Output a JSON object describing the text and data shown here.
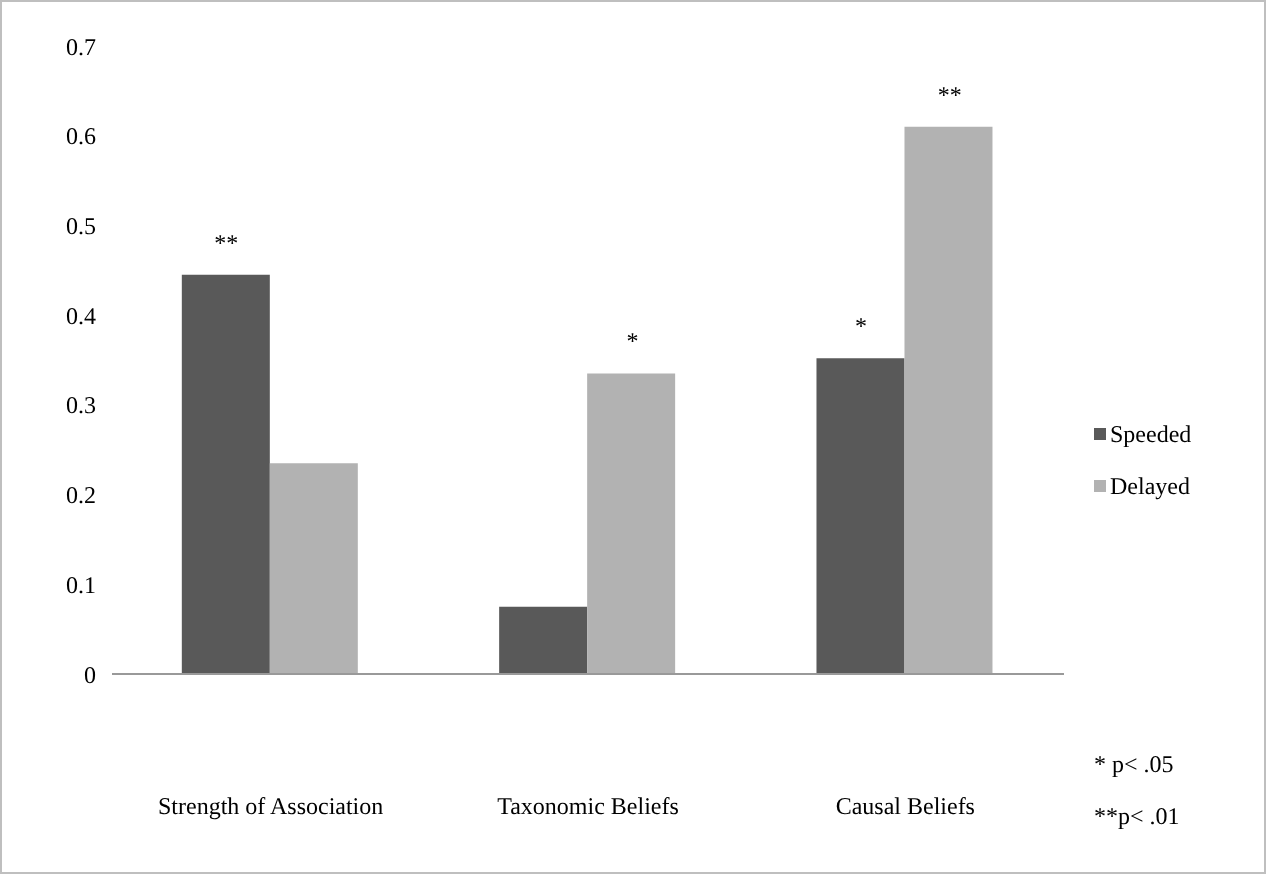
{
  "chart_data": {
    "type": "bar",
    "categories": [
      "Strength of Association",
      "Taxonomic Beliefs",
      "Causal Beliefs"
    ],
    "series": [
      {
        "name": "Speeded",
        "color": "#595959",
        "values": [
          0.445,
          0.075,
          0.352
        ]
      },
      {
        "name": "Delayed",
        "color": "#b2b2b2",
        "values": [
          0.235,
          0.335,
          0.61
        ]
      }
    ],
    "ylim": [
      0,
      0.7
    ],
    "yticks": [
      0,
      0.1,
      0.2,
      0.3,
      0.4,
      0.5,
      0.6,
      0.7
    ],
    "grid": false,
    "legend": "right",
    "annotations": [
      {
        "text": "**",
        "x": "Strength of Association",
        "y": 0.445
      },
      {
        "text": "*",
        "x": "Taxonomic Beliefs",
        "y": 0.335
      },
      {
        "text": "*",
        "x": "Causal Beliefs",
        "y": 0.352
      },
      {
        "text": "**",
        "x": "Causal Beliefs",
        "y": 0.61
      },
      "* p< .05",
      "**p< .01"
    ]
  }
}
